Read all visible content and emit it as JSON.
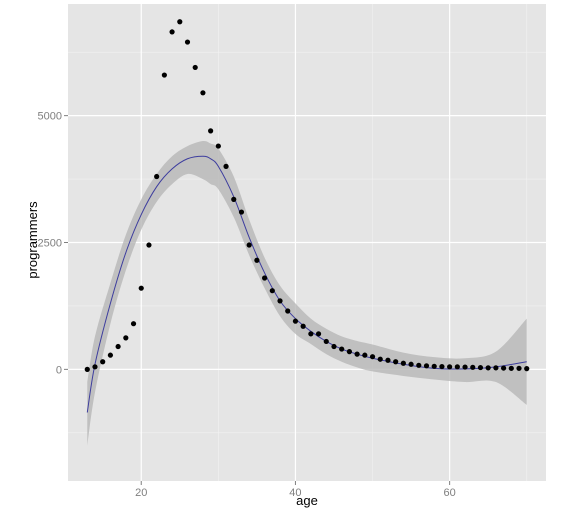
{
  "chart_data": {
    "type": "scatter",
    "xlabel": "age",
    "ylabel": "programmers",
    "xlim": [
      10.5,
      72.5
    ],
    "ylim": [
      -2200,
      7200
    ],
    "x_ticks": [
      20,
      40,
      60
    ],
    "y_ticks": [
      0,
      2500,
      5000
    ],
    "x_tick_labels": [
      "20",
      "40",
      "60"
    ],
    "y_tick_labels": [
      "0",
      "2500",
      "5000"
    ],
    "grid": true,
    "legend": "none",
    "colors": {
      "panel_background": "#e5e5e5",
      "grid_major": "#ffffff",
      "grid_minor": "#f2f2f2",
      "points": "#000000",
      "smooth_line": "#3d3d9e",
      "confidence_band": "#b3b3b3"
    },
    "points": {
      "x": [
        13,
        14,
        15,
        16,
        17,
        18,
        19,
        20,
        21,
        22,
        23,
        24,
        25,
        26,
        27,
        28,
        29,
        30,
        31,
        32,
        33,
        34,
        35,
        36,
        37,
        38,
        39,
        40,
        41,
        42,
        43,
        44,
        45,
        46,
        47,
        48,
        49,
        50,
        51,
        52,
        53,
        54,
        55,
        56,
        57,
        58,
        59,
        60,
        61,
        62,
        63,
        64,
        65,
        66,
        67,
        68,
        69,
        70
      ],
      "y": [
        0,
        50,
        150,
        280,
        450,
        620,
        900,
        1600,
        2450,
        3800,
        5800,
        6650,
        6850,
        6450,
        5950,
        5450,
        4700,
        4400,
        4000,
        3350,
        3100,
        2450,
        2150,
        1800,
        1550,
        1350,
        1150,
        950,
        850,
        700,
        700,
        550,
        450,
        400,
        350,
        300,
        280,
        250,
        200,
        180,
        150,
        120,
        100,
        80,
        70,
        60,
        55,
        50,
        50,
        45,
        40,
        35,
        30,
        30,
        25,
        20,
        20,
        15
      ]
    },
    "smooth": {
      "x": [
        13,
        14,
        16,
        18,
        20,
        22,
        24,
        26,
        28,
        29,
        30,
        32,
        34,
        36,
        38,
        40,
        42,
        44,
        46,
        48,
        50,
        54,
        58,
        62,
        66,
        70
      ],
      "y": [
        -850,
        100,
        1300,
        2300,
        3050,
        3600,
        3950,
        4150,
        4200,
        4150,
        4000,
        3400,
        2600,
        1900,
        1350,
        1000,
        750,
        550,
        400,
        300,
        220,
        100,
        20,
        10,
        50,
        150
      ],
      "lower": [
        -1500,
        -450,
        900,
        1950,
        2750,
        3300,
        3650,
        3850,
        3750,
        3650,
        3550,
        3000,
        2250,
        1600,
        1050,
        700,
        500,
        300,
        150,
        40,
        -40,
        -130,
        -200,
        -250,
        -250,
        -700
      ],
      "upper": [
        -250,
        650,
        1700,
        2650,
        3350,
        3850,
        4200,
        4400,
        4500,
        4450,
        4350,
        3800,
        2950,
        2200,
        1650,
        1300,
        1000,
        800,
        650,
        560,
        490,
        330,
        240,
        220,
        350,
        1000
      ]
    }
  }
}
